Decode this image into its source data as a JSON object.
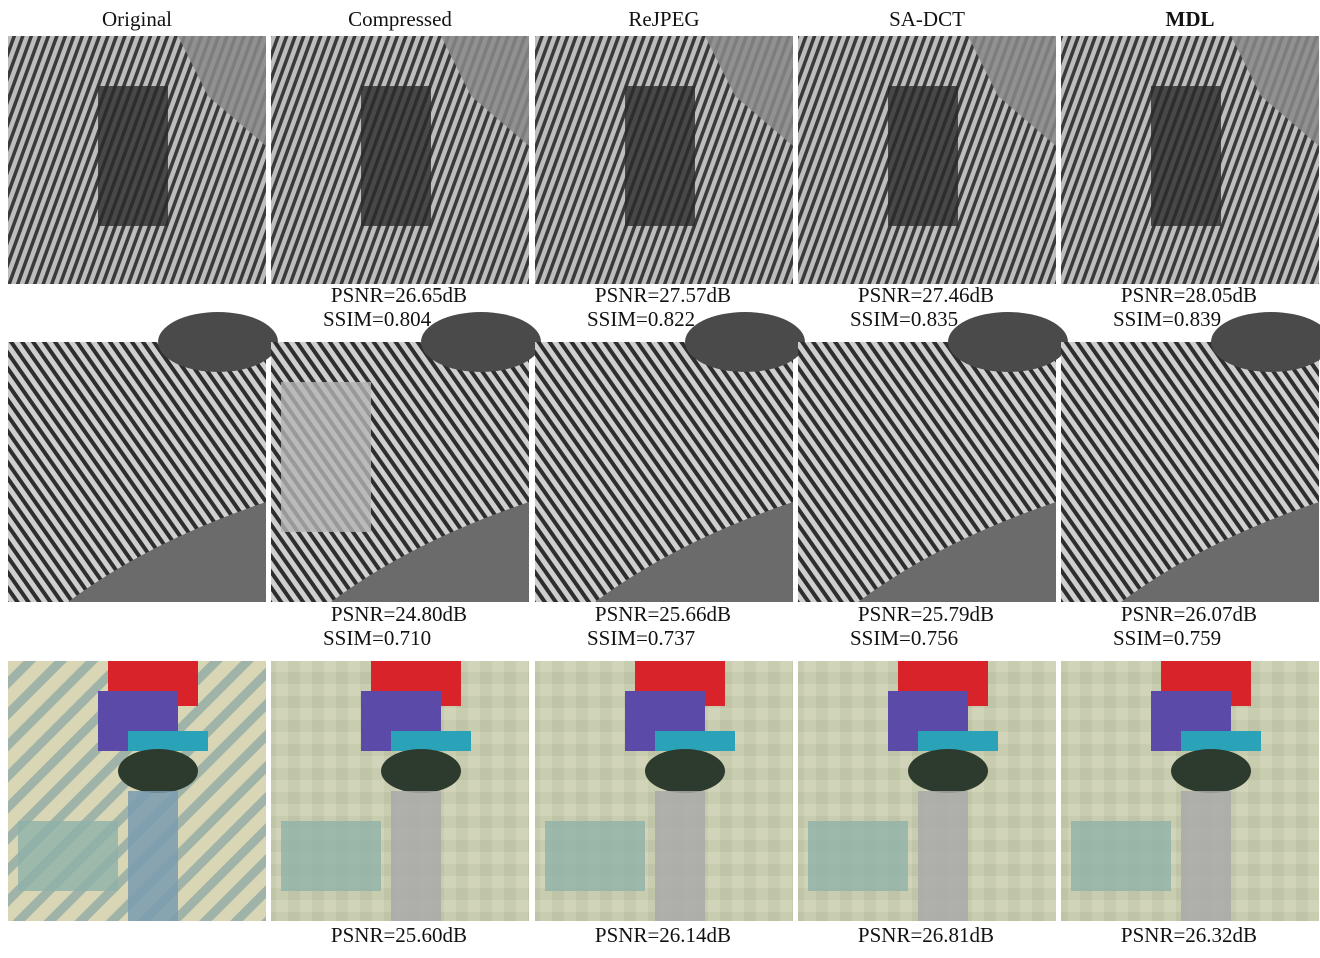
{
  "columns": [
    "Original",
    "Compressed",
    "ReJPEG",
    "SA-DCT",
    "MDL"
  ],
  "rows": [
    {
      "captions": [
        {
          "psnr": "PSNR=26.65dB",
          "ssim": "SSIM=0.804"
        },
        {
          "psnr": "PSNR=27.57dB",
          "ssim": "SSIM=0.822"
        },
        {
          "psnr": "PSNR=27.46dB",
          "ssim": "SSIM=0.835"
        },
        {
          "psnr": "PSNR=28.05dB",
          "ssim": "SSIM=0.839"
        }
      ]
    },
    {
      "captions": [
        {
          "psnr": "PSNR=24.80dB",
          "ssim": "SSIM=0.710"
        },
        {
          "psnr": "PSNR=25.66dB",
          "ssim": "SSIM=0.737"
        },
        {
          "psnr": "PSNR=25.79dB",
          "ssim": "SSIM=0.756"
        },
        {
          "psnr": "PSNR=26.07dB",
          "ssim": "SSIM=0.759"
        }
      ]
    },
    {
      "captions": [
        {
          "psnr": "PSNR=25.60dB"
        },
        {
          "psnr": "PSNR=26.14dB"
        },
        {
          "psnr": "PSNR=26.81dB"
        },
        {
          "psnr": "PSNR=26.32dB"
        }
      ]
    }
  ]
}
